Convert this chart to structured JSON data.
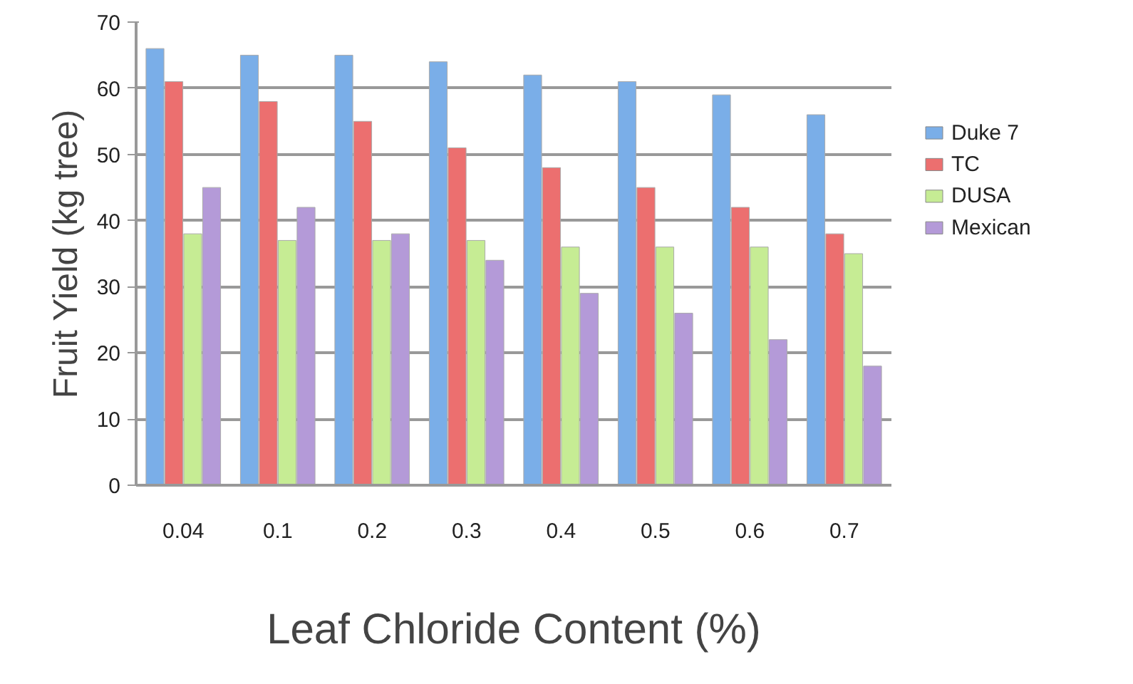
{
  "chart_data": {
    "type": "bar",
    "xlabel": "Leaf Chloride Content (%)",
    "ylabel": "Fruit Yield (kg tree)",
    "categories": [
      "0.04",
      "0.1",
      "0.2",
      "0.3",
      "0.4",
      "0.5",
      "0.6",
      "0.7"
    ],
    "series": [
      {
        "name": "Duke 7",
        "color": "#7aaee8",
        "values": [
          66,
          65,
          65,
          64,
          62,
          61,
          59,
          56
        ]
      },
      {
        "name": "TC",
        "color": "#ec6f6f",
        "values": [
          61,
          58,
          55,
          51,
          48,
          45,
          42,
          38
        ]
      },
      {
        "name": "DUSA",
        "color": "#c6ec94",
        "values": [
          38,
          37,
          37,
          37,
          36,
          36,
          36,
          35
        ]
      },
      {
        "name": "Mexican",
        "color": "#b49ad8",
        "values": [
          45,
          42,
          38,
          34,
          29,
          26,
          22,
          18
        ]
      }
    ],
    "ylim": [
      0,
      70
    ],
    "yticks": [
      0,
      10,
      20,
      30,
      40,
      50,
      60,
      70
    ],
    "grid": "y",
    "legend": "right"
  }
}
